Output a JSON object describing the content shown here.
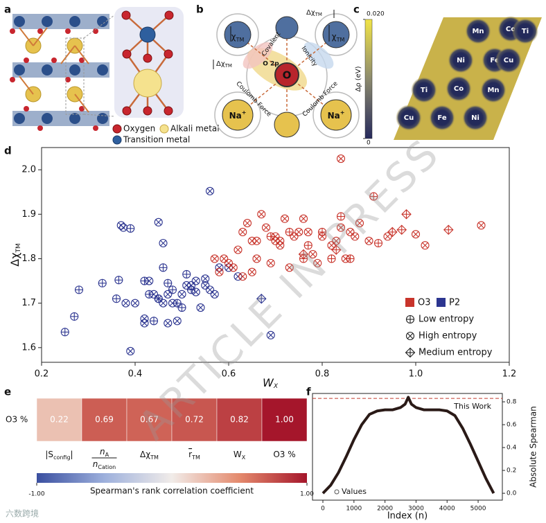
{
  "panel_labels": [
    "a",
    "b",
    "c",
    "d",
    "e",
    "f"
  ],
  "watermark": "ARTICLE IN PRESS",
  "logo_text": "六数跨境",
  "panel_a": {
    "legend": [
      "Oxygen",
      "Alkali metal",
      "Transition metal"
    ]
  },
  "panel_b": {
    "delta": "Δχ",
    "chi": "χ",
    "tm": "TM",
    "o": "O",
    "o2p": "O 2p",
    "na": "Na",
    "plus": "+",
    "covalent": "Covalent",
    "ionicity": "Ionicity",
    "coulomb": "Coulomb Force"
  },
  "panel_c": {
    "elements": [
      "Mn",
      "Co",
      "Ti",
      "Ni",
      "Fe",
      "Cu",
      "Ti",
      "Co",
      "Mn",
      "Cu",
      "Fe",
      "Ni"
    ],
    "clim": [
      0,
      0.02
    ],
    "ticks": [
      0,
      {
        "value": 0.02,
        "label": "0.020"
      }
    ],
    "label_symbol": "Δρ",
    "label_unit": "(eV)"
  },
  "chart_data": [
    {
      "type": "scatter",
      "xlabel": {
        "base": "W",
        "sub": "X"
      },
      "ylabel": {
        "base": "Δχ",
        "sub": "TM"
      },
      "xlim": [
        0.2,
        1.2
      ],
      "ylim": [
        1.567,
        2.05
      ],
      "xticks": [
        0.2,
        0.4,
        0.6,
        0.8,
        {
          "value": 1,
          "label": "1.0"
        },
        1.2
      ],
      "yticks": [
        1.6,
        1.7,
        1.8,
        1.9,
        {
          "value": 2,
          "label": "2.0"
        }
      ],
      "color_legend": [
        {
          "name": "O3",
          "color": "#c8342b"
        },
        {
          "name": "P2",
          "color": "#2c3590"
        }
      ],
      "marker_legend": [
        {
          "name": "Low entropy",
          "marker": "circle-plus"
        },
        {
          "name": "High entropy",
          "marker": "circle-x"
        },
        {
          "name": "Medium entropy",
          "marker": "diamond-plus"
        }
      ],
      "groups": [
        {
          "color": "#2c3590",
          "marker": "circle-plus",
          "x": [
            0.25,
            0.27,
            0.28,
            0.33,
            0.36,
            0.365,
            0.39,
            0.42,
            0.44,
            0.45,
            0.46,
            0.48,
            0.5,
            0.52,
            0.43,
            0.47,
            0.51,
            0.49
          ],
          "y": [
            1.635,
            1.67,
            1.73,
            1.745,
            1.71,
            1.752,
            1.868,
            1.75,
            1.66,
            1.71,
            1.78,
            1.73,
            1.69,
            1.73,
            1.72,
            1.745,
            1.765,
            1.7
          ]
        },
        {
          "color": "#2c3590",
          "marker": "circle-x",
          "x": [
            0.37,
            0.375,
            0.39,
            0.45,
            0.46,
            0.56,
            0.42,
            0.42,
            0.43,
            0.47,
            0.48,
            0.5,
            0.52,
            0.53,
            0.55,
            0.54,
            0.57,
            0.6,
            0.62,
            0.44,
            0.46,
            0.49,
            0.51,
            0.56,
            0.58,
            0.69,
            0.4,
            0.38,
            0.47,
            0.53,
            0.55,
            0.45
          ],
          "y": [
            1.875,
            1.87,
            1.592,
            1.882,
            1.835,
            1.952,
            1.665,
            1.655,
            1.75,
            1.72,
            1.7,
            1.72,
            1.74,
            1.75,
            1.755,
            1.69,
            1.72,
            1.78,
            1.76,
            1.72,
            1.7,
            1.66,
            1.74,
            1.73,
            1.78,
            1.628,
            1.7,
            1.7,
            1.655,
            1.725,
            1.74,
            1.71
          ]
        },
        {
          "color": "#2c3590",
          "marker": "diamond-plus",
          "x": [
            0.67
          ],
          "y": [
            1.71
          ]
        },
        {
          "color": "#c8342b",
          "marker": "circle-x",
          "x": [
            0.84,
            0.59,
            0.6,
            0.62,
            0.63,
            0.64,
            0.65,
            0.66,
            0.68,
            0.69,
            0.7,
            0.71,
            0.72,
            0.73,
            0.75,
            0.76,
            0.78,
            0.8,
            0.82,
            0.84,
            0.85,
            0.86,
            0.88,
            0.9,
            0.94,
            1.0,
            1.02,
            0.67,
            0.58,
            0.61,
            0.66,
            0.71,
            0.74,
            0.79,
            0.83,
            0.87,
            0.57,
            0.63,
            0.7,
            1.14,
            0.65,
            0.77
          ],
          "y": [
            2.025,
            1.8,
            1.79,
            1.82,
            1.86,
            1.88,
            1.84,
            1.8,
            1.87,
            1.79,
            1.85,
            1.83,
            1.89,
            1.78,
            1.86,
            1.89,
            1.81,
            1.85,
            1.83,
            1.87,
            1.8,
            1.86,
            1.88,
            1.84,
            1.85,
            1.855,
            1.83,
            1.9,
            1.77,
            1.78,
            1.84,
            1.84,
            1.85,
            1.79,
            1.84,
            1.85,
            1.8,
            1.76,
            1.84,
            1.875,
            1.77,
            1.86
          ]
        },
        {
          "color": "#c8342b",
          "marker": "circle-plus",
          "x": [
            0.73,
            0.77,
            0.84,
            0.86,
            0.91,
            0.92,
            0.8,
            0.69,
            0.76,
            0.82
          ],
          "y": [
            1.86,
            1.83,
            1.895,
            1.8,
            1.94,
            1.835,
            1.86,
            1.85,
            1.8,
            1.8
          ]
        },
        {
          "color": "#c8342b",
          "marker": "diamond-plus",
          "x": [
            0.76,
            0.95,
            0.98,
            0.97,
            1.07,
            0.83
          ],
          "y": [
            1.81,
            1.86,
            1.9,
            1.865,
            1.865,
            1.82
          ]
        }
      ]
    },
    {
      "type": "heatmap",
      "rows": [
        "O3 %"
      ],
      "columns": [
        {
          "base": "|S",
          "sub": "config",
          "end": "|"
        },
        {
          "num": "n",
          "num_sub": "A",
          "den": "n",
          "den_sub": "Cation"
        },
        {
          "base": "Δχ",
          "sub": "TM"
        },
        {
          "over": "r",
          "sub": "TM"
        },
        {
          "base": "W",
          "sub": "X"
        },
        {
          "base": "O3 %"
        }
      ],
      "values": [
        [
          0.22,
          0.69,
          0.67,
          0.72,
          0.82,
          1
        ]
      ],
      "value_labels": [
        [
          "0.22",
          "0.69",
          "0.67",
          "0.72",
          "0.82",
          "1.00"
        ]
      ],
      "clim": [
        -1,
        1
      ],
      "colormap": [
        "#3a4fa0",
        "#9db0dc",
        "#f1ece9",
        "#e48a6d",
        "#a5162b"
      ],
      "colorbar_ticks": [
        {
          "value": -1,
          "label": "-1.00"
        },
        {
          "value": 1,
          "label": "1.00"
        }
      ],
      "colorbar_label": "Spearman's rank correlation coefficient"
    },
    {
      "type": "line",
      "xlabel": "Index (n)",
      "ylabel": "Absolute Spearman",
      "x": [
        0,
        250,
        500,
        750,
        1000,
        1250,
        1500,
        1750,
        2000,
        2250,
        2500,
        2650,
        2750,
        2850,
        3000,
        3250,
        3500,
        3750,
        4000,
        4250,
        4500,
        4750,
        5000,
        5250,
        5500
      ],
      "series": [
        {
          "name": "Values",
          "color": "#2a1a17",
          "values": [
            0,
            0.07,
            0.18,
            0.32,
            0.47,
            0.6,
            0.69,
            0.72,
            0.73,
            0.73,
            0.75,
            0.78,
            0.84,
            0.78,
            0.75,
            0.73,
            0.73,
            0.73,
            0.72,
            0.68,
            0.57,
            0.43,
            0.28,
            0.13,
            0
          ]
        }
      ],
      "xlim": [
        -335,
        5780
      ],
      "ylim": [
        -0.06,
        0.873
      ],
      "xticks": [
        0,
        1000,
        2000,
        3000,
        4000,
        5000
      ],
      "yticks": [
        {
          "value": 0,
          "label": "0.0"
        },
        0.2,
        0.4,
        0.6,
        0.8
      ],
      "reference": {
        "value": 0.83,
        "label": "This Work",
        "color": "#c0392b"
      }
    }
  ]
}
